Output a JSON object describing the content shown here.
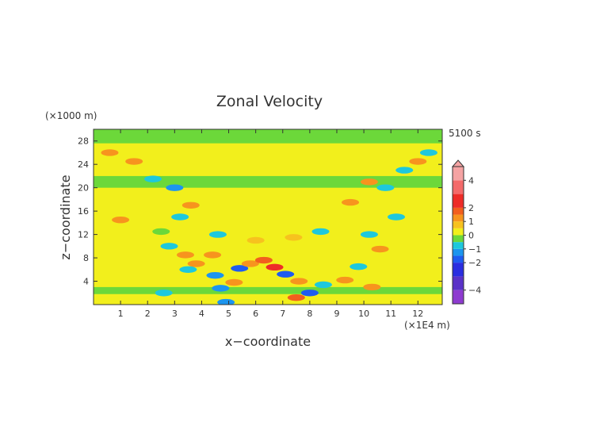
{
  "chart_data": {
    "type": "heatmap",
    "title": "Zonal Velocity",
    "xlabel": "x−coordinate",
    "ylabel": "z−coordinate",
    "x_multiplier": "(×1E4 m)",
    "y_multiplier": "(×1000 m)",
    "time_label": "5100 s",
    "xlim": [
      0,
      12.9
    ],
    "ylim": [
      0,
      30
    ],
    "x_ticks": [
      1,
      2,
      3,
      4,
      5,
      6,
      7,
      8,
      9,
      10,
      11,
      12
    ],
    "y_ticks": [
      4,
      8,
      12,
      16,
      20,
      24,
      28
    ],
    "colorbar": {
      "range": [
        -5,
        5
      ],
      "tick_values": [
        4,
        2,
        1,
        0,
        -1,
        -2,
        -4
      ],
      "tick_labels": [
        "4",
        "2",
        "1",
        "0",
        "−1",
        "−2",
        "−4"
      ],
      "levels": [
        {
          "from": -5.0,
          "to": -4.0,
          "color": "#8e3bd0"
        },
        {
          "from": -4.0,
          "to": -3.0,
          "color": "#5a32c8"
        },
        {
          "from": -3.0,
          "to": -2.0,
          "color": "#2a2ee0"
        },
        {
          "from": -2.0,
          "to": -1.5,
          "color": "#1e5cf0"
        },
        {
          "from": -1.5,
          "to": -1.0,
          "color": "#1c95ee"
        },
        {
          "from": -1.0,
          "to": -0.5,
          "color": "#1ec8dc"
        },
        {
          "from": -0.5,
          "to": 0.0,
          "color": "#6cd83a"
        },
        {
          "from": 0.0,
          "to": 0.5,
          "color": "#f2ef1c"
        },
        {
          "from": 0.5,
          "to": 1.0,
          "color": "#f7c21e"
        },
        {
          "from": 1.0,
          "to": 1.5,
          "color": "#f7941e"
        },
        {
          "from": 1.5,
          "to": 2.0,
          "color": "#f25f1e"
        },
        {
          "from": 2.0,
          "to": 3.0,
          "color": "#ee2c28"
        },
        {
          "from": 3.0,
          "to": 4.0,
          "color": "#f46a6a"
        },
        {
          "from": 4.0,
          "to": 5.0,
          "color": "#f5a3a3"
        }
      ]
    },
    "field": {
      "background_value": 0.25,
      "bands": [
        {
          "z0": 0.0,
          "z1": 1.8,
          "value": 0.3
        },
        {
          "z0": 1.8,
          "z1": 3.0,
          "value": -0.2
        },
        {
          "z0": 27.6,
          "z1": 30.0,
          "value": -0.2
        },
        {
          "z0": 20.0,
          "z1": 22.0,
          "value": -0.2
        }
      ],
      "features": [
        {
          "x": 0.6,
          "z": 26.0,
          "value": 1.2
        },
        {
          "x": 1.5,
          "z": 24.5,
          "value": 1.0
        },
        {
          "x": 2.2,
          "z": 21.5,
          "value": -0.8
        },
        {
          "x": 3.0,
          "z": 20.0,
          "value": -1.2
        },
        {
          "x": 3.6,
          "z": 17.0,
          "value": 1.1
        },
        {
          "x": 3.2,
          "z": 15.0,
          "value": -0.6
        },
        {
          "x": 1.0,
          "z": 14.5,
          "value": 1.2
        },
        {
          "x": 2.8,
          "z": 10.0,
          "value": -0.6
        },
        {
          "x": 3.4,
          "z": 8.5,
          "value": 1.3
        },
        {
          "x": 3.8,
          "z": 7.0,
          "value": 1.0
        },
        {
          "x": 4.4,
          "z": 8.5,
          "value": 1.0
        },
        {
          "x": 3.5,
          "z": 6.0,
          "value": -1.0
        },
        {
          "x": 4.5,
          "z": 5.0,
          "value": -1.2
        },
        {
          "x": 5.4,
          "z": 6.2,
          "value": -1.6
        },
        {
          "x": 5.8,
          "z": 7.0,
          "value": 1.4
        },
        {
          "x": 6.3,
          "z": 7.6,
          "value": 1.6
        },
        {
          "x": 6.7,
          "z": 6.4,
          "value": 2.2
        },
        {
          "x": 7.1,
          "z": 5.2,
          "value": -1.8
        },
        {
          "x": 7.6,
          "z": 4.0,
          "value": 1.3
        },
        {
          "x": 8.0,
          "z": 2.0,
          "value": -1.8
        },
        {
          "x": 7.5,
          "z": 1.2,
          "value": 1.6
        },
        {
          "x": 5.2,
          "z": 3.8,
          "value": 1.4
        },
        {
          "x": 4.7,
          "z": 2.8,
          "value": -1.1
        },
        {
          "x": 4.9,
          "z": 0.4,
          "value": -1.3
        },
        {
          "x": 8.5,
          "z": 3.4,
          "value": -1.0
        },
        {
          "x": 9.3,
          "z": 4.2,
          "value": 1.1
        },
        {
          "x": 10.3,
          "z": 3.0,
          "value": 1.0
        },
        {
          "x": 9.8,
          "z": 6.5,
          "value": -0.7
        },
        {
          "x": 10.6,
          "z": 9.5,
          "value": 1.2
        },
        {
          "x": 10.2,
          "z": 12.0,
          "value": -0.8
        },
        {
          "x": 11.2,
          "z": 15.0,
          "value": -1.0
        },
        {
          "x": 9.5,
          "z": 17.5,
          "value": 1.1
        },
        {
          "x": 10.2,
          "z": 21.0,
          "value": 1.2
        },
        {
          "x": 10.8,
          "z": 20.0,
          "value": -0.9
        },
        {
          "x": 11.5,
          "z": 23.0,
          "value": -1.0
        },
        {
          "x": 12.0,
          "z": 24.5,
          "value": 1.0
        },
        {
          "x": 12.4,
          "z": 26.0,
          "value": -0.9
        },
        {
          "x": 2.6,
          "z": 2.0,
          "value": -0.6
        },
        {
          "x": 2.5,
          "z": 12.5,
          "value": -0.5
        },
        {
          "x": 6.0,
          "z": 11.0,
          "value": 0.9
        },
        {
          "x": 7.4,
          "z": 11.5,
          "value": 0.9
        },
        {
          "x": 4.6,
          "z": 12.0,
          "value": -0.6
        },
        {
          "x": 8.4,
          "z": 12.5,
          "value": -0.6
        }
      ]
    }
  }
}
